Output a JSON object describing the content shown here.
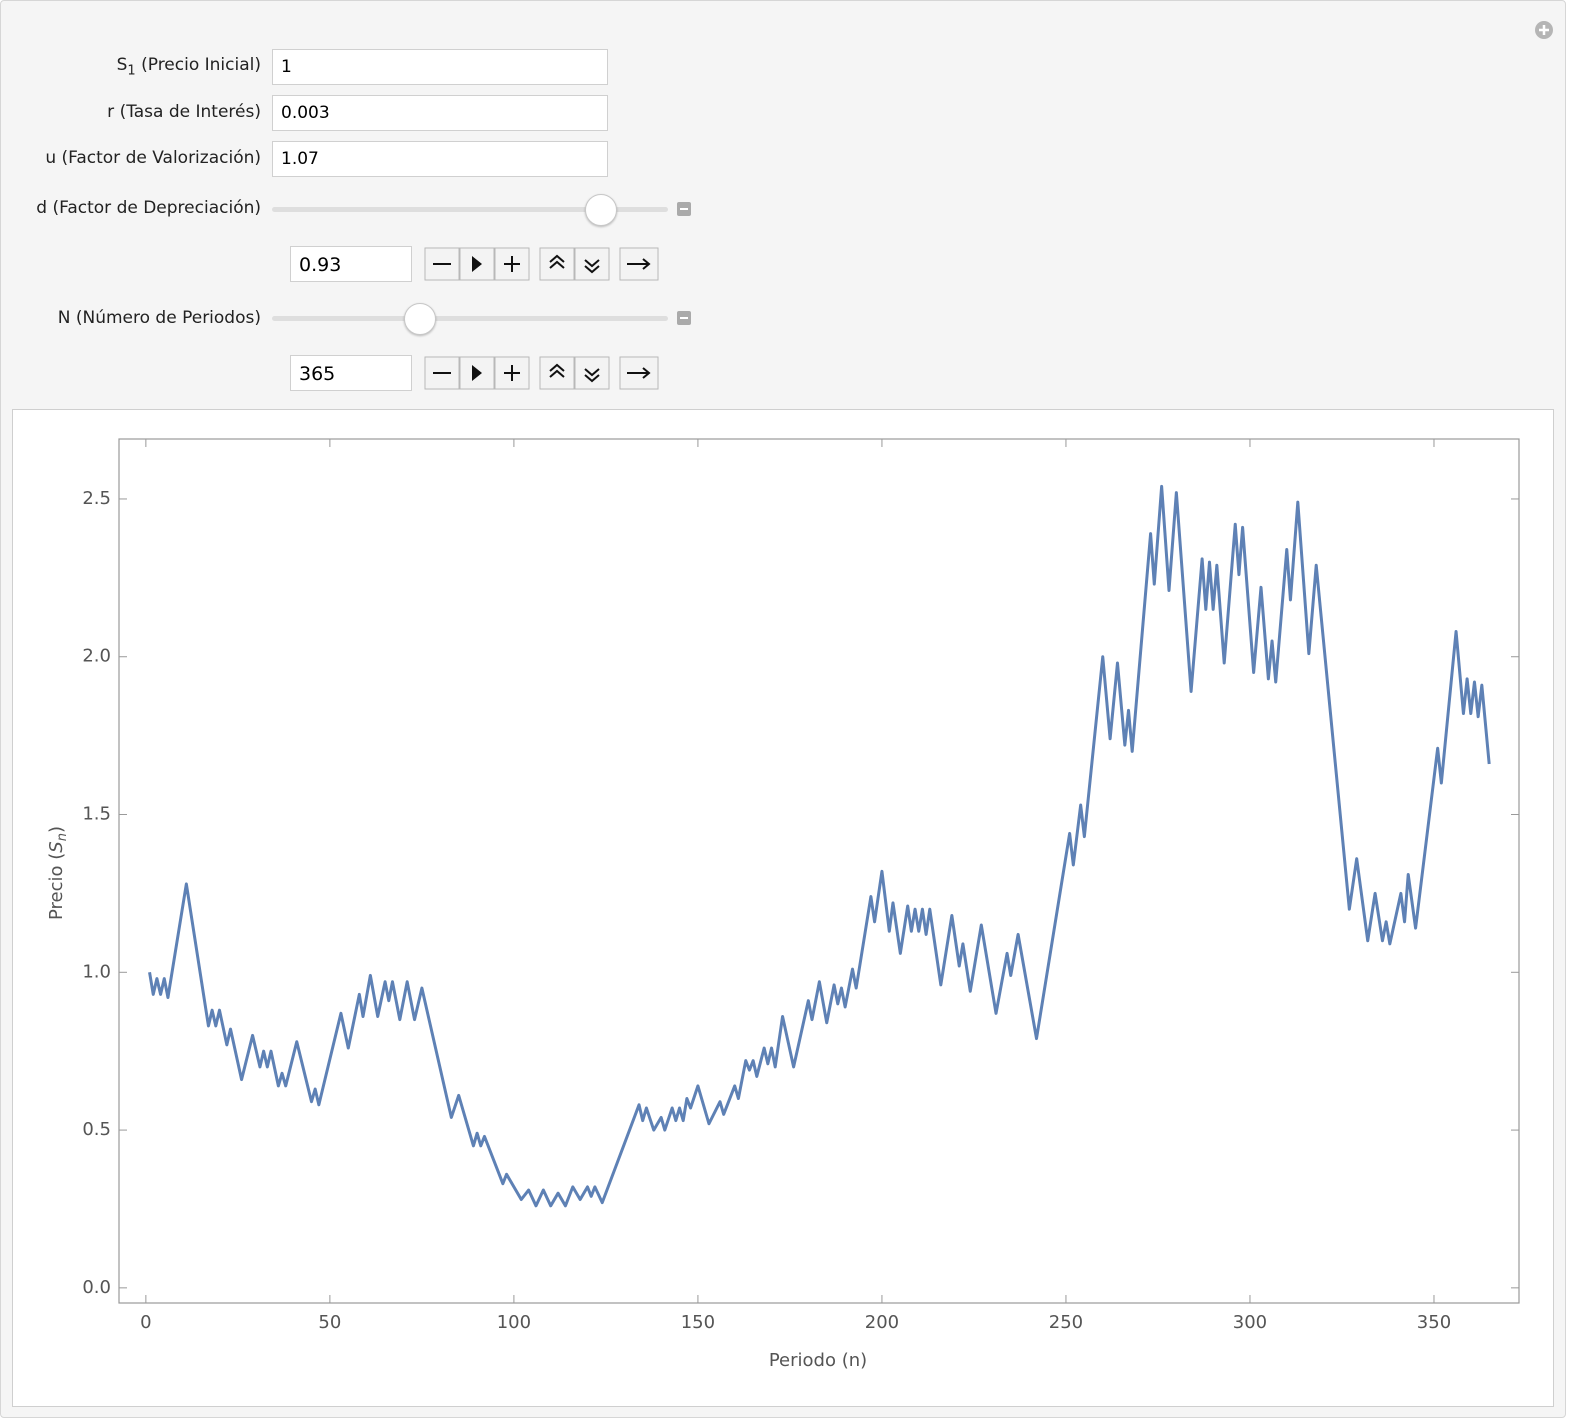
{
  "controls": [
    {
      "label": [
        "S",
        "1",
        " (Precio Inicial)"
      ],
      "value": 1
    },
    {
      "label": [
        "r (Tasa de Interés)"
      ],
      "value": 0.003
    },
    {
      "label": [
        "u (Factor de Valorización)"
      ],
      "value": 1.07
    }
  ],
  "sliders": [
    {
      "label": "d (Factor de Depreciación)",
      "value": 0.93
    },
    {
      "label": "N (Número de Periodos)",
      "value": 365
    }
  ],
  "chart_data": {
    "type": "line",
    "xlabel": "Periodo (n)",
    "ylabel": [
      "Precio (",
      "S",
      "n",
      ")"
    ],
    "xlim": [
      -7.3,
      373.1
    ],
    "ylim": [
      -0.048,
      2.69
    ],
    "xticks": [
      0,
      50,
      100,
      150,
      200,
      250,
      300,
      350
    ],
    "yticks": [
      {
        "value": 0,
        "label": "0.0"
      },
      0.5,
      {
        "value": 1,
        "label": "1.0"
      },
      1.5,
      {
        "value": 2,
        "label": "2.0"
      },
      2.5
    ],
    "x": [
      1,
      2,
      3,
      4,
      5,
      6,
      11,
      17,
      18,
      19,
      20,
      22,
      23,
      26,
      29,
      31,
      32,
      33,
      34,
      36,
      37,
      38,
      41,
      45,
      46,
      47,
      53,
      55,
      58,
      59,
      61,
      63,
      65,
      66,
      67,
      69,
      71,
      73,
      75,
      83,
      85,
      89,
      90,
      91,
      92,
      97,
      98,
      102,
      104,
      106,
      108,
      110,
      112,
      114,
      116,
      118,
      120,
      121,
      122,
      124,
      134,
      135,
      136,
      138,
      140,
      141,
      143,
      144,
      145,
      146,
      147,
      148,
      150,
      153,
      156,
      157,
      160,
      161,
      163,
      164,
      165,
      166,
      168,
      169,
      170,
      171,
      173,
      176,
      180,
      181,
      183,
      185,
      187,
      188,
      189,
      190,
      192,
      193,
      197,
      198,
      200,
      202,
      203,
      205,
      207,
      208,
      209,
      210,
      211,
      212,
      213,
      216,
      219,
      221,
      222,
      224,
      227,
      231,
      234,
      235,
      237,
      242,
      251,
      252,
      254,
      255,
      260,
      262,
      264,
      266,
      267,
      268,
      273,
      274,
      276,
      278,
      280,
      284,
      287,
      288,
      289,
      290,
      291,
      293,
      296,
      297,
      298,
      301,
      303,
      305,
      306,
      307,
      310,
      311,
      313,
      316,
      318,
      327,
      329,
      332,
      334,
      336,
      337,
      338,
      341,
      342,
      343,
      345,
      351,
      352,
      356,
      358,
      359,
      360,
      361,
      362,
      363,
      365
    ],
    "series": [
      {
        "color": "#5e81b5",
        "values": [
          1.0,
          0.93,
          0.98,
          0.93,
          0.98,
          0.92,
          1.28,
          0.83,
          0.88,
          0.83,
          0.88,
          0.77,
          0.82,
          0.66,
          0.8,
          0.7,
          0.75,
          0.7,
          0.75,
          0.64,
          0.68,
          0.64,
          0.78,
          0.59,
          0.63,
          0.58,
          0.87,
          0.76,
          0.93,
          0.86,
          0.99,
          0.86,
          0.97,
          0.91,
          0.97,
          0.85,
          0.97,
          0.85,
          0.95,
          0.54,
          0.61,
          0.45,
          0.49,
          0.45,
          0.48,
          0.33,
          0.36,
          0.28,
          0.31,
          0.26,
          0.31,
          0.26,
          0.3,
          0.26,
          0.32,
          0.28,
          0.32,
          0.29,
          0.32,
          0.27,
          0.58,
          0.53,
          0.57,
          0.5,
          0.54,
          0.5,
          0.57,
          0.53,
          0.57,
          0.53,
          0.6,
          0.57,
          0.64,
          0.52,
          0.59,
          0.55,
          0.64,
          0.6,
          0.72,
          0.69,
          0.72,
          0.67,
          0.76,
          0.71,
          0.76,
          0.7,
          0.86,
          0.7,
          0.91,
          0.85,
          0.97,
          0.84,
          0.96,
          0.9,
          0.95,
          0.89,
          1.01,
          0.95,
          1.24,
          1.16,
          1.32,
          1.13,
          1.22,
          1.06,
          1.21,
          1.13,
          1.2,
          1.13,
          1.2,
          1.12,
          1.2,
          0.96,
          1.18,
          1.02,
          1.09,
          0.94,
          1.15,
          0.87,
          1.06,
          0.99,
          1.12,
          0.79,
          1.44,
          1.34,
          1.53,
          1.43,
          2.0,
          1.74,
          1.98,
          1.72,
          1.83,
          1.7,
          2.39,
          2.23,
          2.54,
          2.21,
          2.52,
          1.89,
          2.31,
          2.15,
          2.3,
          2.15,
          2.29,
          1.98,
          2.42,
          2.26,
          2.41,
          1.95,
          2.22,
          1.93,
          2.05,
          1.92,
          2.34,
          2.18,
          2.49,
          2.01,
          2.29,
          1.2,
          1.36,
          1.1,
          1.25,
          1.1,
          1.16,
          1.09,
          1.25,
          1.16,
          1.31,
          1.14,
          1.71,
          1.6,
          2.08,
          1.82,
          1.93,
          1.82,
          1.92,
          1.81,
          1.91,
          1.66
        ]
      }
    ]
  }
}
